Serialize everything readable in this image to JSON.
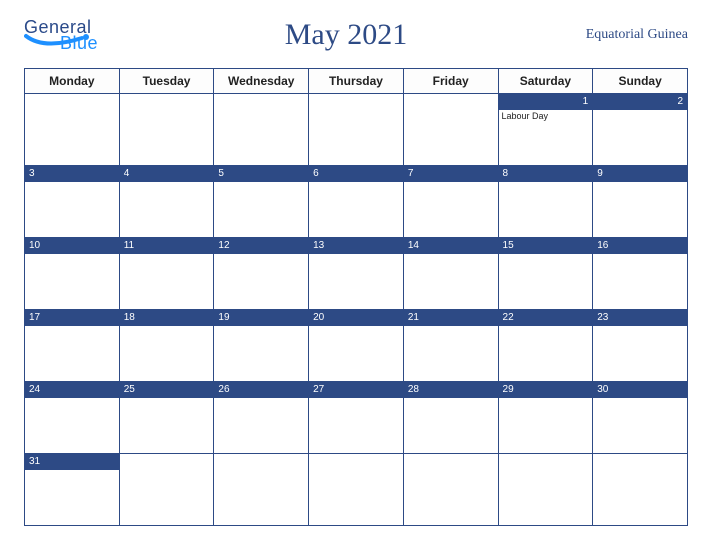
{
  "logo": {
    "line1": "General",
    "line2": "Blue"
  },
  "title": "May 2021",
  "country": "Equatorial Guinea",
  "colors": {
    "brand_dark": "#2d4a85",
    "brand_light": "#1e90ff",
    "cell_bg": "#ffffff",
    "border": "#2d4a85"
  },
  "weekdays": [
    "Monday",
    "Tuesday",
    "Wednesday",
    "Thursday",
    "Friday",
    "Saturday",
    "Sunday"
  ],
  "weeks": [
    [
      {
        "n": null
      },
      {
        "n": null
      },
      {
        "n": null
      },
      {
        "n": null
      },
      {
        "n": null
      },
      {
        "n": "1",
        "align": "right",
        "event": "Labour Day"
      },
      {
        "n": "2",
        "align": "right"
      }
    ],
    [
      {
        "n": "3"
      },
      {
        "n": "4"
      },
      {
        "n": "5"
      },
      {
        "n": "6"
      },
      {
        "n": "7"
      },
      {
        "n": "8"
      },
      {
        "n": "9"
      }
    ],
    [
      {
        "n": "10"
      },
      {
        "n": "11"
      },
      {
        "n": "12"
      },
      {
        "n": "13"
      },
      {
        "n": "14"
      },
      {
        "n": "15"
      },
      {
        "n": "16"
      }
    ],
    [
      {
        "n": "17"
      },
      {
        "n": "18"
      },
      {
        "n": "19"
      },
      {
        "n": "20"
      },
      {
        "n": "21"
      },
      {
        "n": "22"
      },
      {
        "n": "23"
      }
    ],
    [
      {
        "n": "24"
      },
      {
        "n": "25"
      },
      {
        "n": "26"
      },
      {
        "n": "27"
      },
      {
        "n": "28"
      },
      {
        "n": "29"
      },
      {
        "n": "30"
      }
    ],
    [
      {
        "n": "31"
      },
      {
        "n": null
      },
      {
        "n": null
      },
      {
        "n": null
      },
      {
        "n": null
      },
      {
        "n": null
      },
      {
        "n": null
      }
    ]
  ]
}
